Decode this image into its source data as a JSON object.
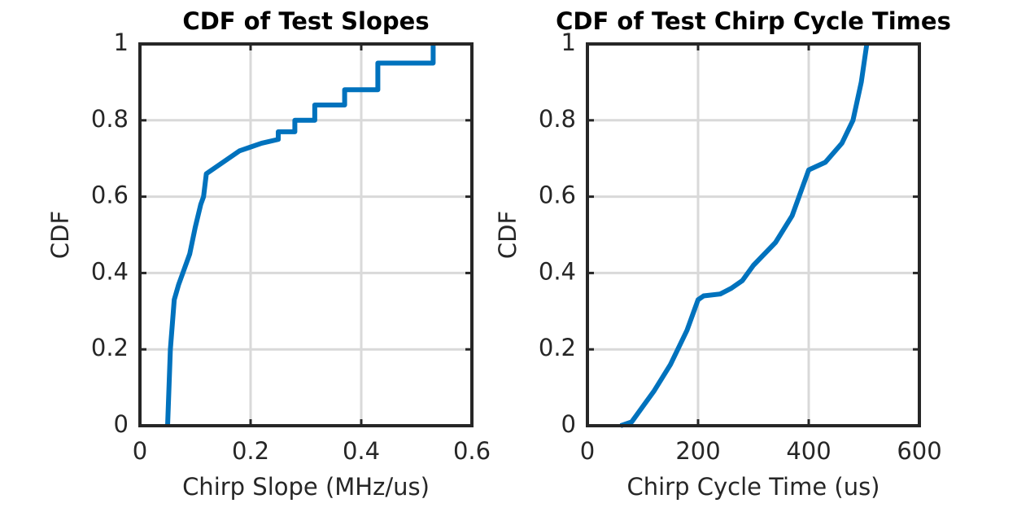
{
  "chart_data": [
    {
      "type": "line",
      "title": "CDF of Test Slopes",
      "x_label": "Chirp Slope (MHz/us)",
      "y_label": "CDF",
      "xlim": [
        0,
        0.6
      ],
      "ylim": [
        0,
        1
      ],
      "xticks": [
        0,
        0.2,
        0.4,
        0.6
      ],
      "yticks": [
        0,
        0.2,
        0.4,
        0.6,
        0.8,
        1
      ],
      "grid": true,
      "series": [
        {
          "color": "#0072bd",
          "x": [
            0.05,
            0.055,
            0.062,
            0.07,
            0.08,
            0.09,
            0.1,
            0.11,
            0.115,
            0.12,
            0.14,
            0.16,
            0.18,
            0.2,
            0.22,
            0.25,
            0.25,
            0.28,
            0.28,
            0.316,
            0.316,
            0.37,
            0.37,
            0.43,
            0.43,
            0.53,
            0.53
          ],
          "values": [
            0,
            0.2,
            0.33,
            0.37,
            0.41,
            0.45,
            0.52,
            0.58,
            0.6,
            0.66,
            0.68,
            0.7,
            0.72,
            0.73,
            0.74,
            0.75,
            0.77,
            0.77,
            0.8,
            0.8,
            0.84,
            0.84,
            0.88,
            0.88,
            0.95,
            0.95,
            1
          ]
        }
      ]
    },
    {
      "type": "line",
      "title": "CDF of Test Chirp Cycle Times",
      "x_label": "Chirp Cycle Time (us)",
      "y_label": "CDF",
      "xlim": [
        0,
        600
      ],
      "ylim": [
        0,
        1
      ],
      "xticks": [
        0,
        200,
        400,
        600
      ],
      "yticks": [
        0,
        0.2,
        0.4,
        0.6,
        0.8,
        1
      ],
      "grid": true,
      "series": [
        {
          "color": "#0072bd",
          "x": [
            60,
            80,
            100,
            120,
            150,
            180,
            200,
            210,
            240,
            260,
            280,
            300,
            340,
            370,
            400,
            430,
            460,
            480,
            495,
            505
          ],
          "values": [
            0,
            0.01,
            0.05,
            0.09,
            0.16,
            0.25,
            0.33,
            0.34,
            0.345,
            0.36,
            0.38,
            0.42,
            0.48,
            0.55,
            0.67,
            0.69,
            0.74,
            0.8,
            0.9,
            1
          ]
        }
      ]
    }
  ]
}
